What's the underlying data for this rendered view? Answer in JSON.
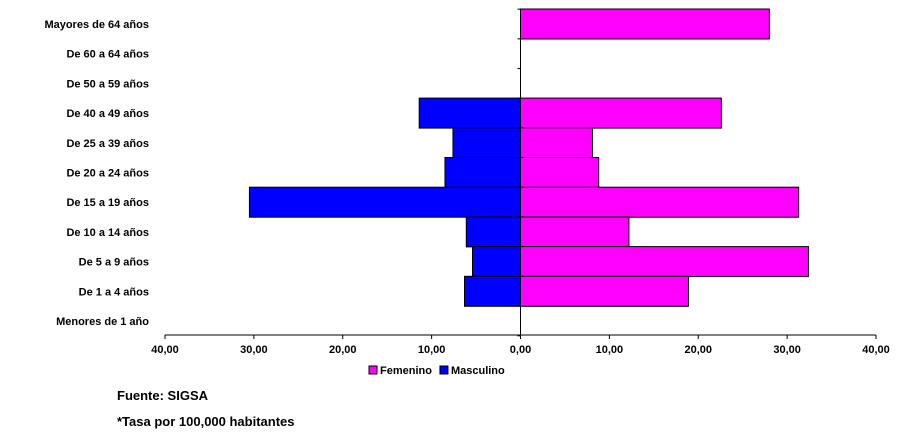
{
  "chart_data": {
    "type": "bar",
    "orientation": "horizontal",
    "categories": [
      "Mayores de 64 años",
      "De 60 a 64 años",
      "De 50 a 59 años",
      "De 40 a 49 años",
      "De 25 a 39 años",
      "De 20 a 24 años",
      "De 15 a 19 años",
      "De 10 a 14 años",
      "De 5 a 9 años",
      "De 1 a 4 años",
      "Menores de 1 año"
    ],
    "series": [
      {
        "name": "Femenino",
        "color": "#ff00ff",
        "values": [
          28.0,
          0,
          0,
          22.6,
          8.1,
          8.8,
          31.3,
          12.2,
          32.4,
          18.9,
          0
        ]
      },
      {
        "name": "Masculino",
        "color": "#0000ff",
        "values": [
          0,
          0,
          0,
          11.4,
          7.6,
          8.5,
          30.5,
          6.1,
          5.4,
          6.3,
          0
        ]
      }
    ],
    "xlim": [
      -40,
      40
    ],
    "x_ticks": [
      "40,00",
      "30,00",
      "20,00",
      "10,00",
      "0,00",
      "10,00",
      "20,00",
      "30,00",
      "40,00"
    ],
    "legend_placement": "bottom-center",
    "grid": false
  },
  "notes": {
    "source": "Fuente: SIGSA",
    "rate": "*Tasa por 100,000 habitantes"
  }
}
